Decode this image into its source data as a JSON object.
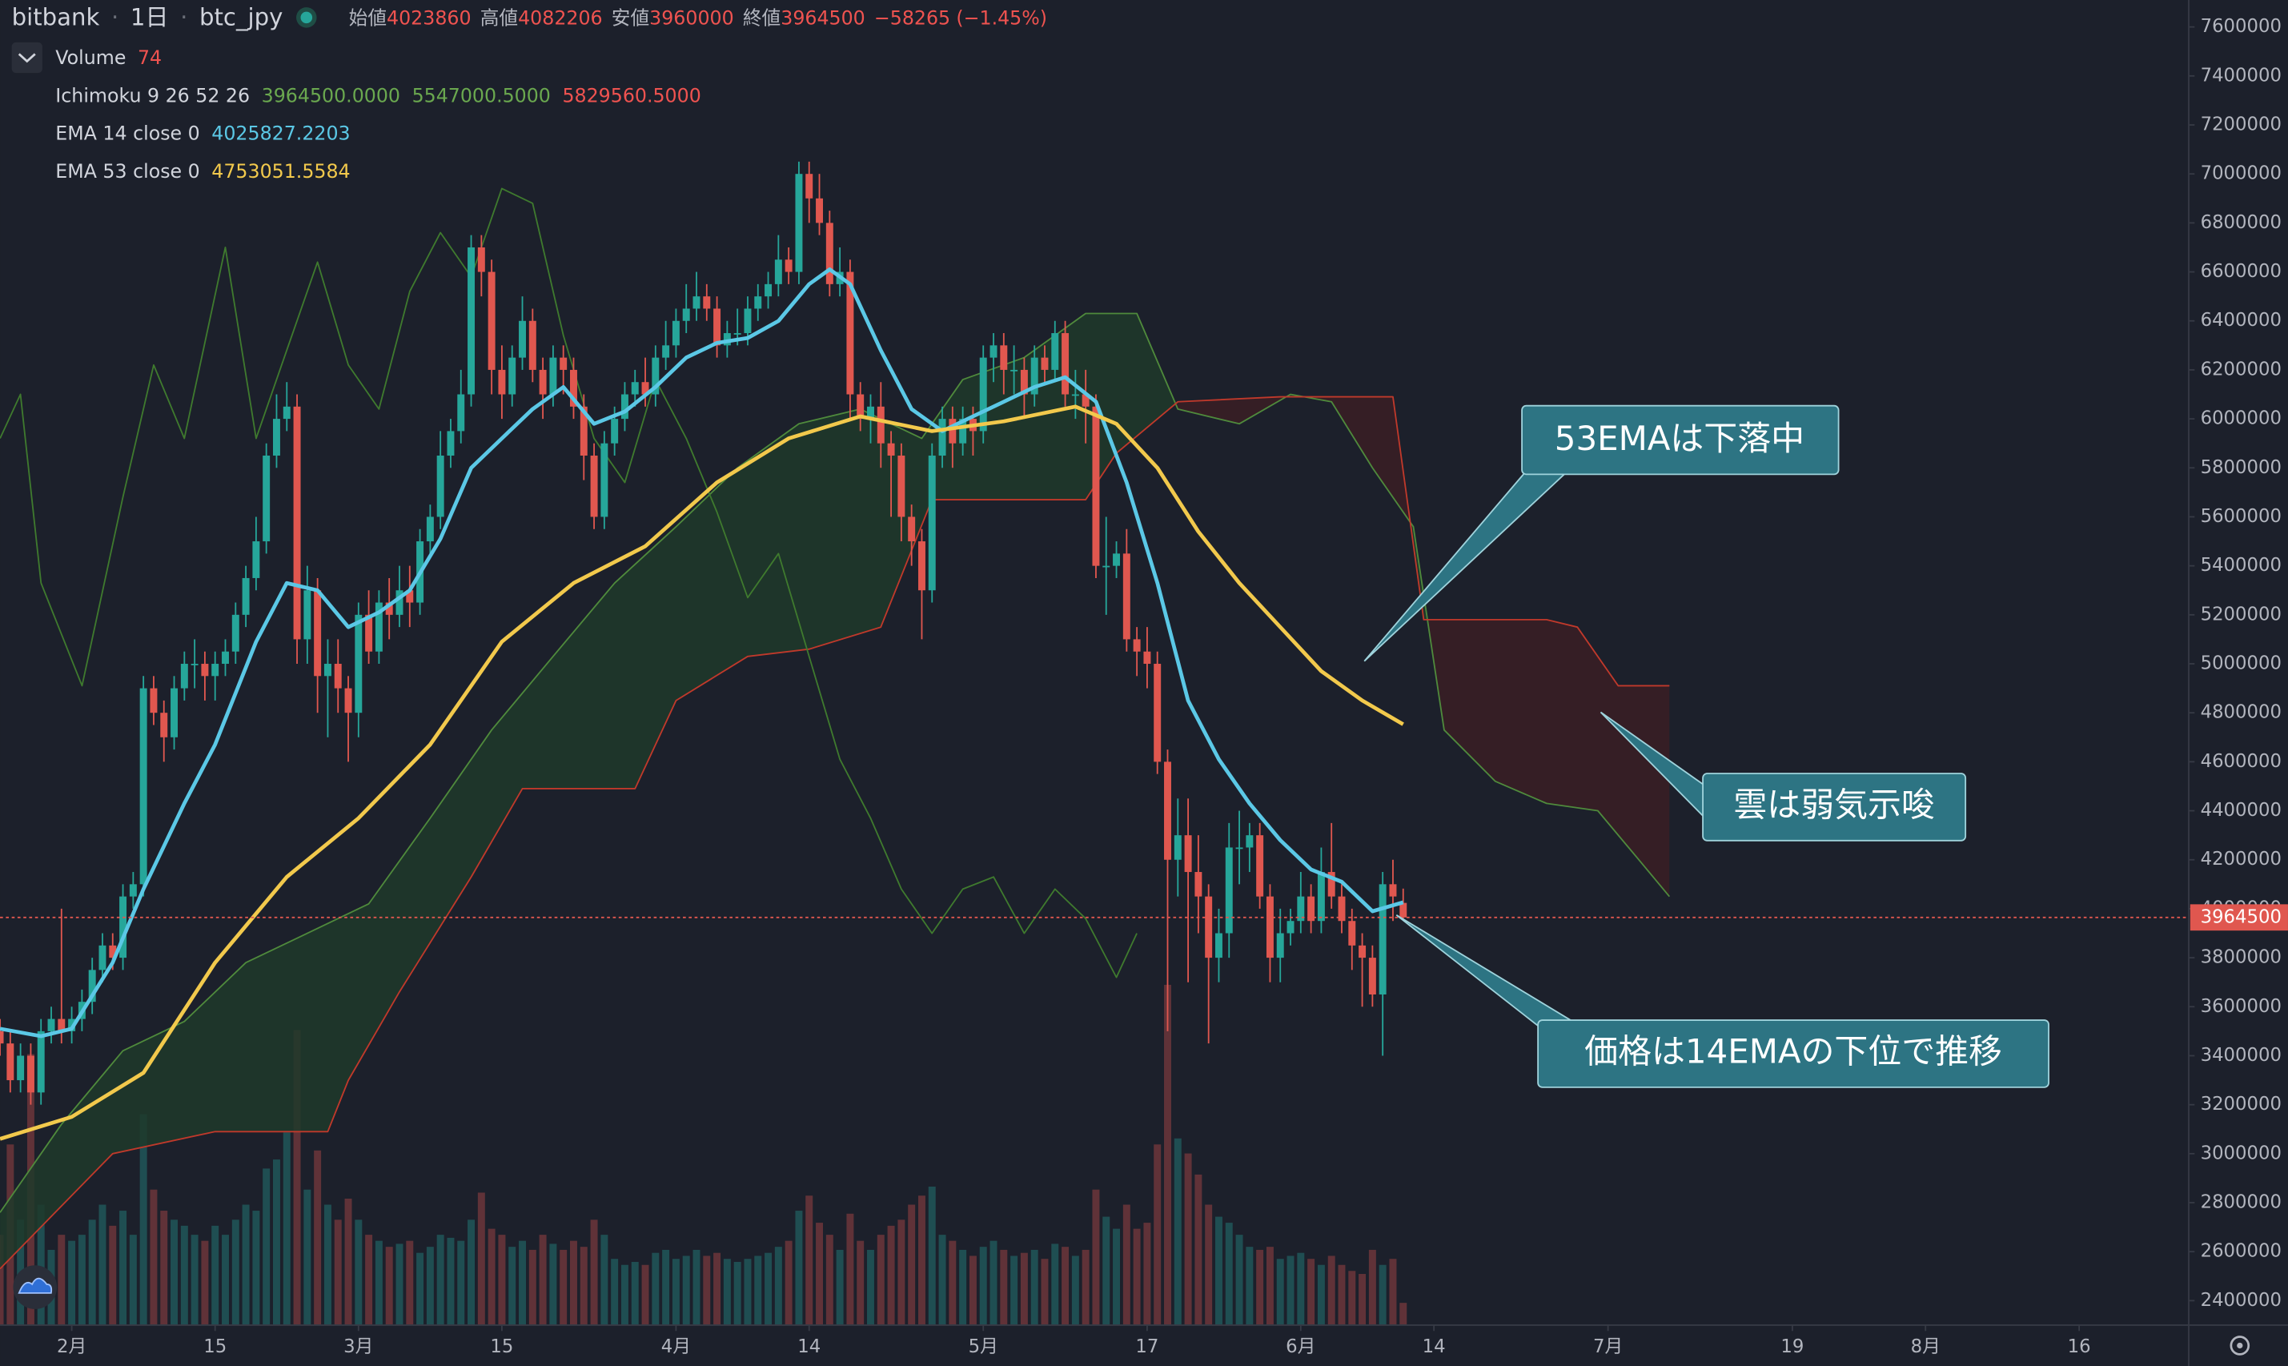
{
  "header": {
    "exchange": "bitbank",
    "interval": "1日",
    "symbol": "btc_jpy",
    "open_label": "始値",
    "high_label": "高値",
    "low_label": "安値",
    "close_label": "終値",
    "change": {
      "value": -58265,
      "label": "−58265"
    },
    "change_pct": {
      "value": -1.45,
      "label": "(−1.45%)"
    }
  },
  "annotations": [
    {
      "text": "53EMAは下落中"
    },
    {
      "text": "雲は弱気示唆"
    },
    {
      "text": "価格は14EMAの下位で推移"
    }
  ],
  "chart_data": {
    "type": "candlestick",
    "grid": false,
    "background": "#1c202b",
    "up_color": "#26a69a",
    "down_color": "#e0574f",
    "xlim": [
      24,
      237.7
    ],
    "ylim": [
      2300000,
      7710000
    ],
    "xticks": [
      {
        "value": 31,
        "label": "2月"
      },
      {
        "value": 45,
        "label": "15"
      },
      {
        "value": 59,
        "label": "3月"
      },
      {
        "value": 73,
        "label": "15"
      },
      {
        "value": 90,
        "label": "4月"
      },
      {
        "value": 103,
        "label": "14"
      },
      {
        "value": 120,
        "label": "5月"
      },
      {
        "value": 136,
        "label": "17"
      },
      {
        "value": 151,
        "label": "6月"
      },
      {
        "value": 164,
        "label": "14"
      },
      {
        "value": 181,
        "label": "7月"
      },
      {
        "value": 199,
        "label": "19"
      },
      {
        "value": 212,
        "label": "8月"
      },
      {
        "value": 227,
        "label": "16"
      }
    ],
    "yticks": [
      2400000,
      2600000,
      2800000,
      3000000,
      3200000,
      3400000,
      3600000,
      3800000,
      4000000,
      4200000,
      4400000,
      4600000,
      4800000,
      5000000,
      5200000,
      5400000,
      5600000,
      5800000,
      6000000,
      6200000,
      6400000,
      6600000,
      6800000,
      7000000,
      7200000,
      7400000,
      7600000
    ],
    "x": [
      24,
      25,
      26,
      27,
      28,
      29,
      30,
      31,
      32,
      33,
      34,
      35,
      36,
      37,
      38,
      39,
      40,
      41,
      42,
      43,
      44,
      45,
      46,
      47,
      48,
      49,
      50,
      51,
      52,
      53,
      54,
      55,
      56,
      57,
      58,
      59,
      60,
      61,
      62,
      63,
      64,
      65,
      66,
      67,
      68,
      69,
      70,
      71,
      72,
      73,
      74,
      75,
      76,
      77,
      78,
      79,
      80,
      81,
      82,
      83,
      84,
      85,
      86,
      87,
      88,
      89,
      90,
      91,
      92,
      93,
      94,
      95,
      96,
      97,
      98,
      99,
      100,
      101,
      102,
      103,
      104,
      105,
      106,
      107,
      108,
      109,
      110,
      111,
      112,
      113,
      114,
      115,
      116,
      117,
      118,
      119,
      120,
      121,
      122,
      123,
      124,
      125,
      126,
      127,
      128,
      129,
      130,
      131,
      132,
      133,
      134,
      135,
      136,
      137,
      138,
      139,
      140,
      141,
      142,
      143,
      144,
      145,
      146,
      147,
      148,
      149,
      150,
      151,
      152,
      153,
      154,
      155,
      156,
      157,
      158,
      159,
      160,
      161
    ],
    "open": [
      3500000,
      3450000,
      3300000,
      3400000,
      3250000,
      3500000,
      3550000,
      3500000,
      3550000,
      3620000,
      3750000,
      3850000,
      3800000,
      4050000,
      4100000,
      4900000,
      4800000,
      4700000,
      4900000,
      5000000,
      5000000,
      4950000,
      5000000,
      5050000,
      5200000,
      5350000,
      5500000,
      5850000,
      6000000,
      6050000,
      5100000,
      5300000,
      4950000,
      5000000,
      4900000,
      4800000,
      5200000,
      5050000,
      5250000,
      5200000,
      5300000,
      5250000,
      5500000,
      5600000,
      5850000,
      5950000,
      6100000,
      6700000,
      6600000,
      6200000,
      6100000,
      6250000,
      6400000,
      6200000,
      6100000,
      6250000,
      6200000,
      6050000,
      5850000,
      5600000,
      5900000,
      6000000,
      6100000,
      6150000,
      6100000,
      6250000,
      6300000,
      6400000,
      6450000,
      6500000,
      6450000,
      6300000,
      6350000,
      6350000,
      6450000,
      6500000,
      6550000,
      6650000,
      6600000,
      7000000,
      6900000,
      6800000,
      6550000,
      6600000,
      6100000,
      6000000,
      6050000,
      5900000,
      5850000,
      5600000,
      5500000,
      5300000,
      5850000,
      6000000,
      5900000,
      6000000,
      5950000,
      6250000,
      6300000,
      6200000,
      6200000,
      6100000,
      6250000,
      6200000,
      6350000,
      6100000,
      6100000,
      6050000,
      5400000,
      5400000,
      5450000,
      5100000,
      5050000,
      5000000,
      4600000,
      4200000,
      4300000,
      4150000,
      4050000,
      3800000,
      3900000,
      4250000,
      4250000,
      4300000,
      4050000,
      3800000,
      3900000,
      3950000,
      4050000,
      3950000,
      4150000,
      4050000,
      3950000,
      3850000,
      3800000,
      3650000,
      4100000,
      4023860
    ],
    "high": [
      3550000,
      3500000,
      3450000,
      3450000,
      3550000,
      3600000,
      4000000,
      3600000,
      3670000,
      3800000,
      3900000,
      3900000,
      4100000,
      4150000,
      4950000,
      4950000,
      4850000,
      4950000,
      5050000,
      5100000,
      5050000,
      5050000,
      5100000,
      5250000,
      5400000,
      5600000,
      5900000,
      6100000,
      6150000,
      6100000,
      5400000,
      5350000,
      5100000,
      5100000,
      4950000,
      5250000,
      5300000,
      5300000,
      5350000,
      5400000,
      5400000,
      5550000,
      5650000,
      5950000,
      6000000,
      6200000,
      6750000,
      6750000,
      6650000,
      6300000,
      6300000,
      6500000,
      6450000,
      6250000,
      6300000,
      6300000,
      6250000,
      6100000,
      5900000,
      5950000,
      6050000,
      6150000,
      6200000,
      6250000,
      6300000,
      6400000,
      6450000,
      6550000,
      6600000,
      6550000,
      6500000,
      6400000,
      6450000,
      6500000,
      6550000,
      6600000,
      6750000,
      6700000,
      7050000,
      7050000,
      7000000,
      6850000,
      6700000,
      6650000,
      6150000,
      6100000,
      6150000,
      5950000,
      5900000,
      5650000,
      5550000,
      5900000,
      6050000,
      6050000,
      6050000,
      6050000,
      6300000,
      6350000,
      6350000,
      6300000,
      6250000,
      6300000,
      6300000,
      6400000,
      6400000,
      6200000,
      6200000,
      6100000,
      5600000,
      5500000,
      5550000,
      5150000,
      5150000,
      5050000,
      4650000,
      4450000,
      4450000,
      4300000,
      4100000,
      4000000,
      4350000,
      4400000,
      4350000,
      4350000,
      4100000,
      4000000,
      4000000,
      4150000,
      4100000,
      4250000,
      4350000,
      4100000,
      4000000,
      3900000,
      3850000,
      4150000,
      4200000,
      4082206
    ],
    "low": [
      3400000,
      3250000,
      3250000,
      3200000,
      3200000,
      3450000,
      3450000,
      3450000,
      3500000,
      3570000,
      3700000,
      3750000,
      3750000,
      4000000,
      4050000,
      4750000,
      4600000,
      4650000,
      4850000,
      4900000,
      4850000,
      4850000,
      4950000,
      5000000,
      5150000,
      5300000,
      5450000,
      5800000,
      5950000,
      5000000,
      5000000,
      4800000,
      4700000,
      4800000,
      4600000,
      4700000,
      5000000,
      5000000,
      5100000,
      5150000,
      5150000,
      5200000,
      5450000,
      5550000,
      5800000,
      5900000,
      6050000,
      6500000,
      6100000,
      6000000,
      6050000,
      6200000,
      6150000,
      6000000,
      6050000,
      6100000,
      6000000,
      5750000,
      5550000,
      5550000,
      5850000,
      5950000,
      6050000,
      6050000,
      6050000,
      6200000,
      6250000,
      6350000,
      6400000,
      6400000,
      6250000,
      6250000,
      6300000,
      6300000,
      6400000,
      6450000,
      6500000,
      6550000,
      6550000,
      6800000,
      6750000,
      6500000,
      6500000,
      6000000,
      5950000,
      5900000,
      5800000,
      5600000,
      5500000,
      5400000,
      5100000,
      5250000,
      5800000,
      5800000,
      5850000,
      5850000,
      5900000,
      6150000,
      6100000,
      6100000,
      6000000,
      6050000,
      6150000,
      6150000,
      6050000,
      6000000,
      5900000,
      5350000,
      5200000,
      5350000,
      5050000,
      4950000,
      4900000,
      4550000,
      3500000,
      4050000,
      3700000,
      3900000,
      3450000,
      3700000,
      3800000,
      4100000,
      4150000,
      4000000,
      3700000,
      3700000,
      3850000,
      3900000,
      3900000,
      3900000,
      4000000,
      3900000,
      3750000,
      3600000,
      3600000,
      3400000,
      3950000,
      3960000
    ],
    "close": [
      3450000,
      3300000,
      3400000,
      3250000,
      3500000,
      3550000,
      3500000,
      3550000,
      3620000,
      3750000,
      3850000,
      3800000,
      4050000,
      4100000,
      4900000,
      4800000,
      4700000,
      4900000,
      5000000,
      5000000,
      4950000,
      5000000,
      5050000,
      5200000,
      5350000,
      5500000,
      5850000,
      6000000,
      6050000,
      5100000,
      5300000,
      4950000,
      5000000,
      4900000,
      4800000,
      5200000,
      5050000,
      5250000,
      5200000,
      5300000,
      5250000,
      5500000,
      5600000,
      5850000,
      5950000,
      6100000,
      6700000,
      6600000,
      6200000,
      6100000,
      6250000,
      6400000,
      6200000,
      6100000,
      6250000,
      6200000,
      6050000,
      5850000,
      5600000,
      5900000,
      6000000,
      6100000,
      6150000,
      6100000,
      6250000,
      6300000,
      6400000,
      6450000,
      6500000,
      6450000,
      6300000,
      6350000,
      6350000,
      6450000,
      6500000,
      6550000,
      6650000,
      6600000,
      7000000,
      6900000,
      6800000,
      6550000,
      6600000,
      6100000,
      6000000,
      6050000,
      5900000,
      5850000,
      5600000,
      5500000,
      5300000,
      5850000,
      6000000,
      5900000,
      6000000,
      5950000,
      6250000,
      6300000,
      6200000,
      6200000,
      6100000,
      6250000,
      6200000,
      6350000,
      6100000,
      6100000,
      6050000,
      5400000,
      5400000,
      5450000,
      5100000,
      5050000,
      5000000,
      4600000,
      4200000,
      4300000,
      4150000,
      4050000,
      3800000,
      3900000,
      4250000,
      4250000,
      4300000,
      4050000,
      3800000,
      3900000,
      3950000,
      4050000,
      3950000,
      4150000,
      4050000,
      3950000,
      3850000,
      3800000,
      3650000,
      4100000,
      4050000,
      3964500
    ],
    "volume_label": "Volume",
    "volume_lim": [
      0,
      4400
    ],
    "volumes": [
      300,
      600,
      350,
      900,
      400,
      250,
      300,
      280,
      300,
      350,
      400,
      330,
      380,
      300,
      700,
      450,
      380,
      350,
      330,
      300,
      280,
      330,
      300,
      350,
      400,
      380,
      520,
      550,
      640,
      980,
      450,
      580,
      400,
      350,
      420,
      350,
      300,
      280,
      260,
      270,
      280,
      240,
      260,
      300,
      290,
      280,
      350,
      440,
      320,
      300,
      260,
      280,
      250,
      300,
      270,
      250,
      280,
      260,
      350,
      300,
      220,
      200,
      210,
      200,
      240,
      250,
      220,
      230,
      250,
      230,
      240,
      220,
      210,
      220,
      230,
      240,
      260,
      280,
      380,
      430,
      340,
      300,
      250,
      370,
      280,
      250,
      300,
      330,
      350,
      400,
      430,
      460,
      300,
      280,
      250,
      230,
      260,
      280,
      250,
      230,
      240,
      250,
      220,
      270,
      260,
      230,
      250,
      450,
      360,
      320,
      400,
      320,
      340,
      600,
      1130,
      620,
      570,
      500,
      400,
      360,
      340,
      300,
      260,
      250,
      260,
      220,
      230,
      240,
      220,
      200,
      230,
      200,
      180,
      170,
      250,
      200,
      220,
      74
    ],
    "series": [
      {
        "name": "EMA 14 close 0",
        "color": "#5bc8e6",
        "x": [
          24,
          28,
          31,
          35,
          38,
          42,
          45,
          49,
          52,
          55,
          58,
          61,
          64,
          67,
          70,
          73,
          76,
          79,
          82,
          85,
          88,
          91,
          94,
          97,
          100,
          103,
          105,
          107,
          110,
          113,
          116,
          119,
          122,
          125,
          128,
          131,
          134,
          137,
          140,
          143,
          146,
          149,
          152,
          155,
          158,
          161
        ],
        "values": [
          3510000,
          3480000,
          3510000,
          3780000,
          4080000,
          4430000,
          4670000,
          5090000,
          5330000,
          5300000,
          5150000,
          5210000,
          5300000,
          5510000,
          5800000,
          5920000,
          6040000,
          6130000,
          5980000,
          6030000,
          6130000,
          6250000,
          6310000,
          6330000,
          6400000,
          6550000,
          6610000,
          6550000,
          6280000,
          6040000,
          5950000,
          6010000,
          6070000,
          6130000,
          6170000,
          6070000,
          5740000,
          5330000,
          4850000,
          4610000,
          4430000,
          4280000,
          4160000,
          4110000,
          3990000,
          4025827.2203
        ]
      },
      {
        "name": "EMA 53 close 0",
        "color": "#f2c94c",
        "x": [
          24,
          31,
          38,
          45,
          52,
          59,
          66,
          73,
          80,
          87,
          94,
          101,
          108,
          115,
          122,
          129,
          133,
          137,
          141,
          145,
          149,
          153,
          157,
          161
        ],
        "values": [
          3060000,
          3150000,
          3330000,
          3780000,
          4130000,
          4370000,
          4670000,
          5090000,
          5330000,
          5480000,
          5740000,
          5920000,
          6010000,
          5950000,
          5990000,
          6050000,
          5980000,
          5800000,
          5540000,
          5330000,
          5150000,
          4970000,
          4850000,
          4753051.5584
        ]
      }
    ],
    "ichimoku": {
      "label": "Ichimoku 9 26 52 26",
      "values": [
        {
          "value": 3964500,
          "label": "3964500.0000"
        },
        {
          "value": 5547000.5,
          "label": "5547000.5000"
        },
        {
          "value": 5829560.5,
          "label": "5829560.5000"
        }
      ],
      "span_a": {
        "color": "#4f8a3c",
        "x": [
          24,
          30,
          36,
          42,
          48,
          54,
          60,
          66,
          72,
          78,
          84,
          90,
          96,
          102,
          108,
          114,
          118,
          124,
          130,
          135,
          139,
          145,
          150,
          154,
          158,
          162,
          165,
          170,
          175,
          180,
          184,
          187
        ],
        "values": [
          2760000,
          3120000,
          3420000,
          3540000,
          3780000,
          3900000,
          4020000,
          4370000,
          4730000,
          5030000,
          5330000,
          5560000,
          5800000,
          5980000,
          6040000,
          5920000,
          6160000,
          6250000,
          6430000,
          6430000,
          6040000,
          5980000,
          6100000,
          6070000,
          5800000,
          5560000,
          4730000,
          4520000,
          4430000,
          4400000,
          4200000,
          4050000
        ]
      },
      "span_b": {
        "color": "#c0392b",
        "x": [
          24,
          35,
          45,
          56,
          58,
          63,
          70,
          75,
          86,
          90,
          97,
          103,
          110,
          115,
          130,
          133,
          139,
          149,
          160,
          163,
          175,
          178,
          182,
          187
        ],
        "values": [
          2530000,
          3000000,
          3090000,
          3090000,
          3300000,
          3660000,
          4130000,
          4490000,
          4490000,
          4850000,
          5030000,
          5060000,
          5150000,
          5670000,
          5670000,
          5860000,
          6070000,
          6090000,
          6090000,
          5180000,
          5180000,
          5150000,
          4910000,
          4910000
        ]
      },
      "lagging": {
        "color": "#3f7a2e",
        "x": [
          24,
          26,
          28,
          32,
          36,
          39,
          42,
          46,
          49,
          52,
          55,
          58,
          61,
          64,
          67,
          70,
          73,
          76,
          79,
          82,
          85,
          88,
          91,
          94,
          97,
          100,
          103,
          106,
          109,
          112,
          115,
          118,
          121,
          124,
          127,
          130,
          133,
          135
        ],
        "values": [
          5920000,
          6100000,
          5330000,
          4910000,
          5680000,
          6220000,
          5920000,
          6700000,
          5920000,
          6280000,
          6640000,
          6220000,
          6040000,
          6520000,
          6760000,
          6580000,
          6940000,
          6880000,
          6340000,
          5920000,
          5740000,
          6160000,
          5920000,
          5620000,
          5270000,
          5450000,
          5030000,
          4610000,
          4370000,
          4080000,
          3900000,
          4080000,
          4130000,
          3900000,
          4080000,
          3960000,
          3720000,
          3900000
        ]
      },
      "up_fill": "#1f3a2a",
      "down_fill": "#3a1f24"
    }
  }
}
